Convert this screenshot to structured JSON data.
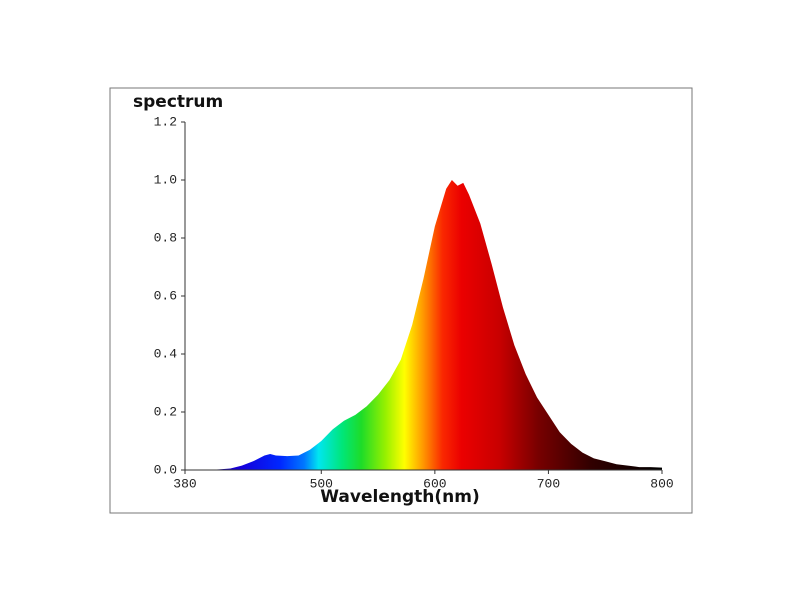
{
  "chart_data": {
    "type": "area",
    "title": "spectrum",
    "xlabel": "Wavelength(nm)",
    "x": [
      380,
      390,
      400,
      410,
      420,
      430,
      440,
      450,
      455,
      460,
      470,
      480,
      490,
      500,
      510,
      520,
      530,
      540,
      550,
      560,
      570,
      580,
      590,
      600,
      610,
      615,
      620,
      625,
      630,
      640,
      650,
      660,
      670,
      680,
      690,
      700,
      710,
      720,
      730,
      740,
      750,
      760,
      770,
      780,
      790,
      800
    ],
    "values": [
      0,
      0,
      0,
      0.002,
      0.005,
      0.015,
      0.03,
      0.05,
      0.055,
      0.05,
      0.048,
      0.05,
      0.07,
      0.1,
      0.14,
      0.17,
      0.19,
      0.22,
      0.26,
      0.31,
      0.38,
      0.5,
      0.66,
      0.84,
      0.97,
      1.0,
      0.98,
      0.99,
      0.95,
      0.85,
      0.71,
      0.56,
      0.43,
      0.33,
      0.25,
      0.19,
      0.13,
      0.09,
      0.06,
      0.04,
      0.03,
      0.02,
      0.015,
      0.01,
      0.01,
      0.008
    ],
    "xlim": [
      380,
      800
    ],
    "xticks": [
      380,
      500,
      600,
      700,
      800
    ],
    "ylim": [
      0,
      1.2
    ],
    "yticks": [
      {
        "value": 0,
        "label": "0.0"
      },
      0.2,
      0.4,
      0.6,
      0.8,
      {
        "value": 1,
        "label": "1.0"
      },
      1.2
    ]
  }
}
